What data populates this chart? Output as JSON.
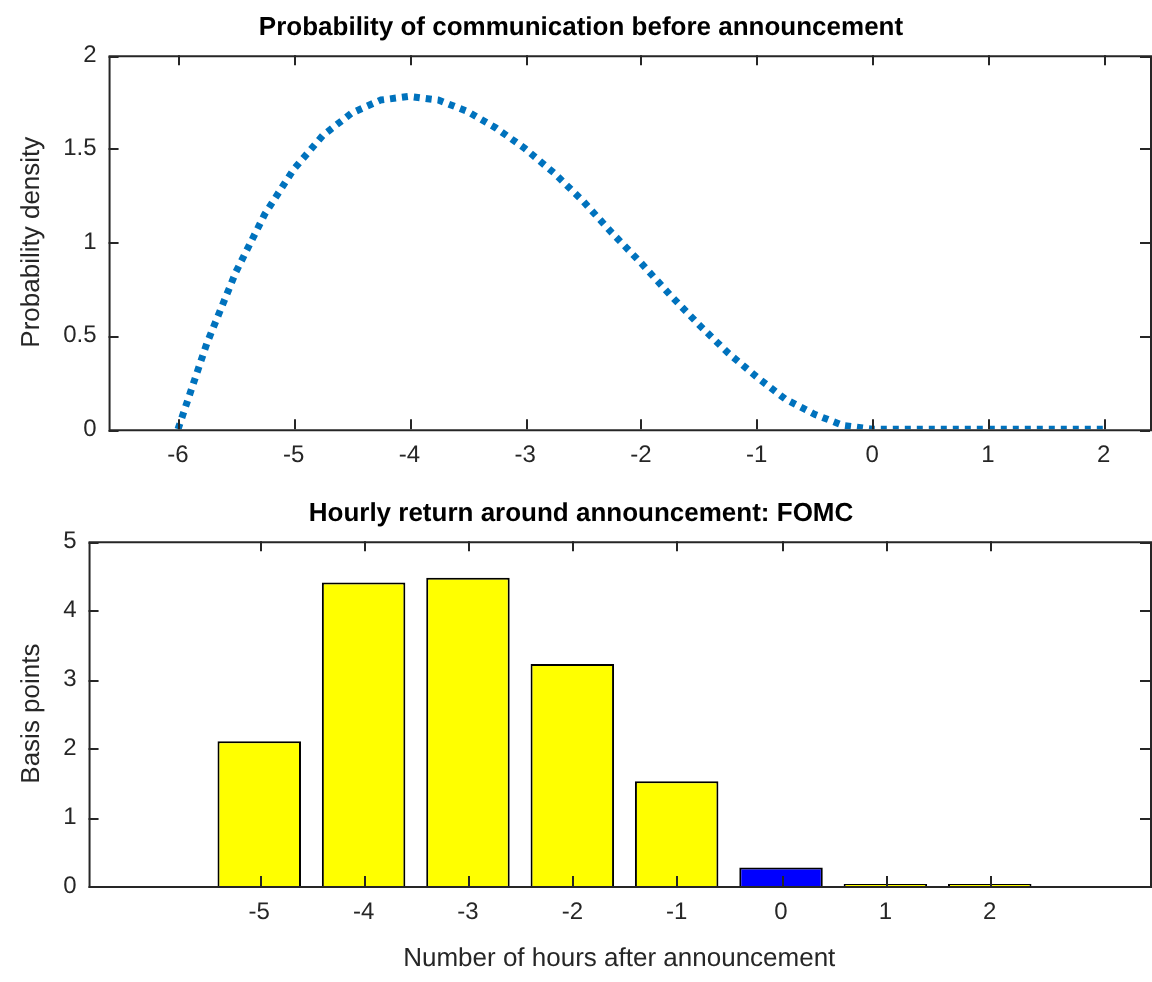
{
  "chart_data": [
    {
      "type": "line",
      "title": "Probability of communication before announcement",
      "ylabel": "Probability density",
      "x": [
        -6,
        -5.75,
        -5.5,
        -5.25,
        -5,
        -4.75,
        -4.5,
        -4.25,
        -4,
        -3.75,
        -3.5,
        -3.25,
        -3,
        -2.75,
        -2.5,
        -2.25,
        -2,
        -1.75,
        -1.5,
        -1.25,
        -1,
        -0.75,
        -0.5,
        -0.25,
        0,
        0.5,
        1,
        1.5,
        2
      ],
      "series": [
        {
          "color": "#0072bd",
          "line_style": "dotted",
          "marker": "none",
          "values": [
            0,
            0.46,
            0.84,
            1.15,
            1.39,
            1.57,
            1.69,
            1.76,
            1.78,
            1.76,
            1.7,
            1.61,
            1.5,
            1.37,
            1.22,
            1.05,
            0.89,
            0.72,
            0.56,
            0.41,
            0.28,
            0.16,
            0.08,
            0.02,
            0,
            0,
            0,
            0,
            0
          ]
        }
      ],
      "xlim": [
        -6.6,
        2.4
      ],
      "ylim": [
        0,
        2
      ],
      "xticks": [
        -6,
        -5,
        -4,
        -3,
        -2,
        -1,
        0,
        1,
        2
      ],
      "yticks": [
        0,
        0.5,
        1,
        1.5,
        2
      ]
    },
    {
      "type": "bar",
      "title": "Hourly return around announcement: FOMC",
      "xlabel": "Number of hours after announcement",
      "ylabel": "Basis points",
      "categories": [
        "-5",
        "-4",
        "-3",
        "-2",
        "-1",
        "0",
        "1",
        "2"
      ],
      "values": [
        2.1,
        4.4,
        4.47,
        3.22,
        1.52,
        0.27,
        0.03,
        0.03
      ],
      "colors": [
        "#ffff00",
        "#ffff00",
        "#ffff00",
        "#ffff00",
        "#ffff00",
        "#0000ff",
        "#ffff00",
        "#ffff00"
      ],
      "ylim": [
        0,
        5
      ],
      "yticks": [
        0,
        1,
        2,
        3,
        4,
        5
      ]
    }
  ]
}
